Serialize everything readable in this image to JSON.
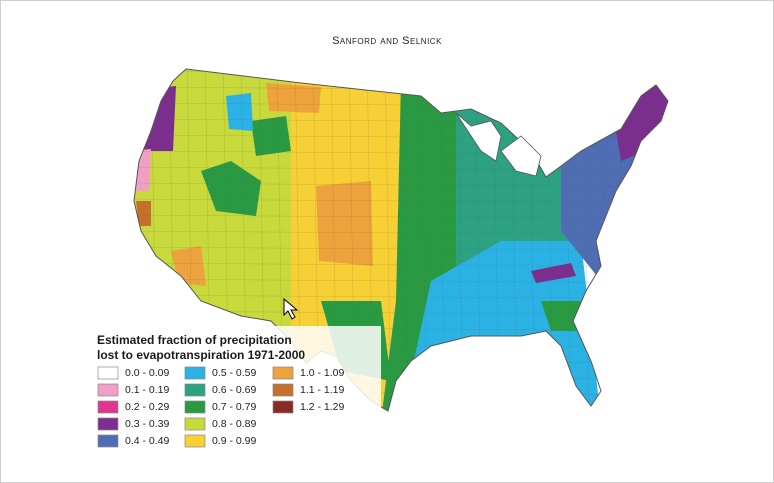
{
  "header": {
    "title": "Sanford and Selnick"
  },
  "legend": {
    "title": [
      "Estimated fraction of precipitation",
      "lost to evapotranspiration 1971-2000"
    ],
    "items": [
      {
        "label": "0.0 - 0.09",
        "color": "#ffffff"
      },
      {
        "label": "0.1 - 0.19",
        "color": "#f29fc7"
      },
      {
        "label": "0.2 - 0.29",
        "color": "#e0358f"
      },
      {
        "label": "0.3 - 0.39",
        "color": "#7b2e8e"
      },
      {
        "label": "0.4 - 0.49",
        "color": "#4f6db3"
      },
      {
        "label": "0.5 - 0.59",
        "color": "#2bb2e5"
      },
      {
        "label": "0.6 - 0.69",
        "color": "#2ca283"
      },
      {
        "label": "0.7 - 0.79",
        "color": "#2a9a42"
      },
      {
        "label": "0.8 - 0.89",
        "color": "#c8d93b"
      },
      {
        "label": "0.9 - 0.99",
        "color": "#f6d035"
      },
      {
        "label": "1.0 - 1.09",
        "color": "#eea23c"
      },
      {
        "label": "1.1 - 1.19",
        "color": "#c56f2d"
      },
      {
        "label": "1.2 - 1.29",
        "color": "#8a2a24"
      }
    ]
  }
}
